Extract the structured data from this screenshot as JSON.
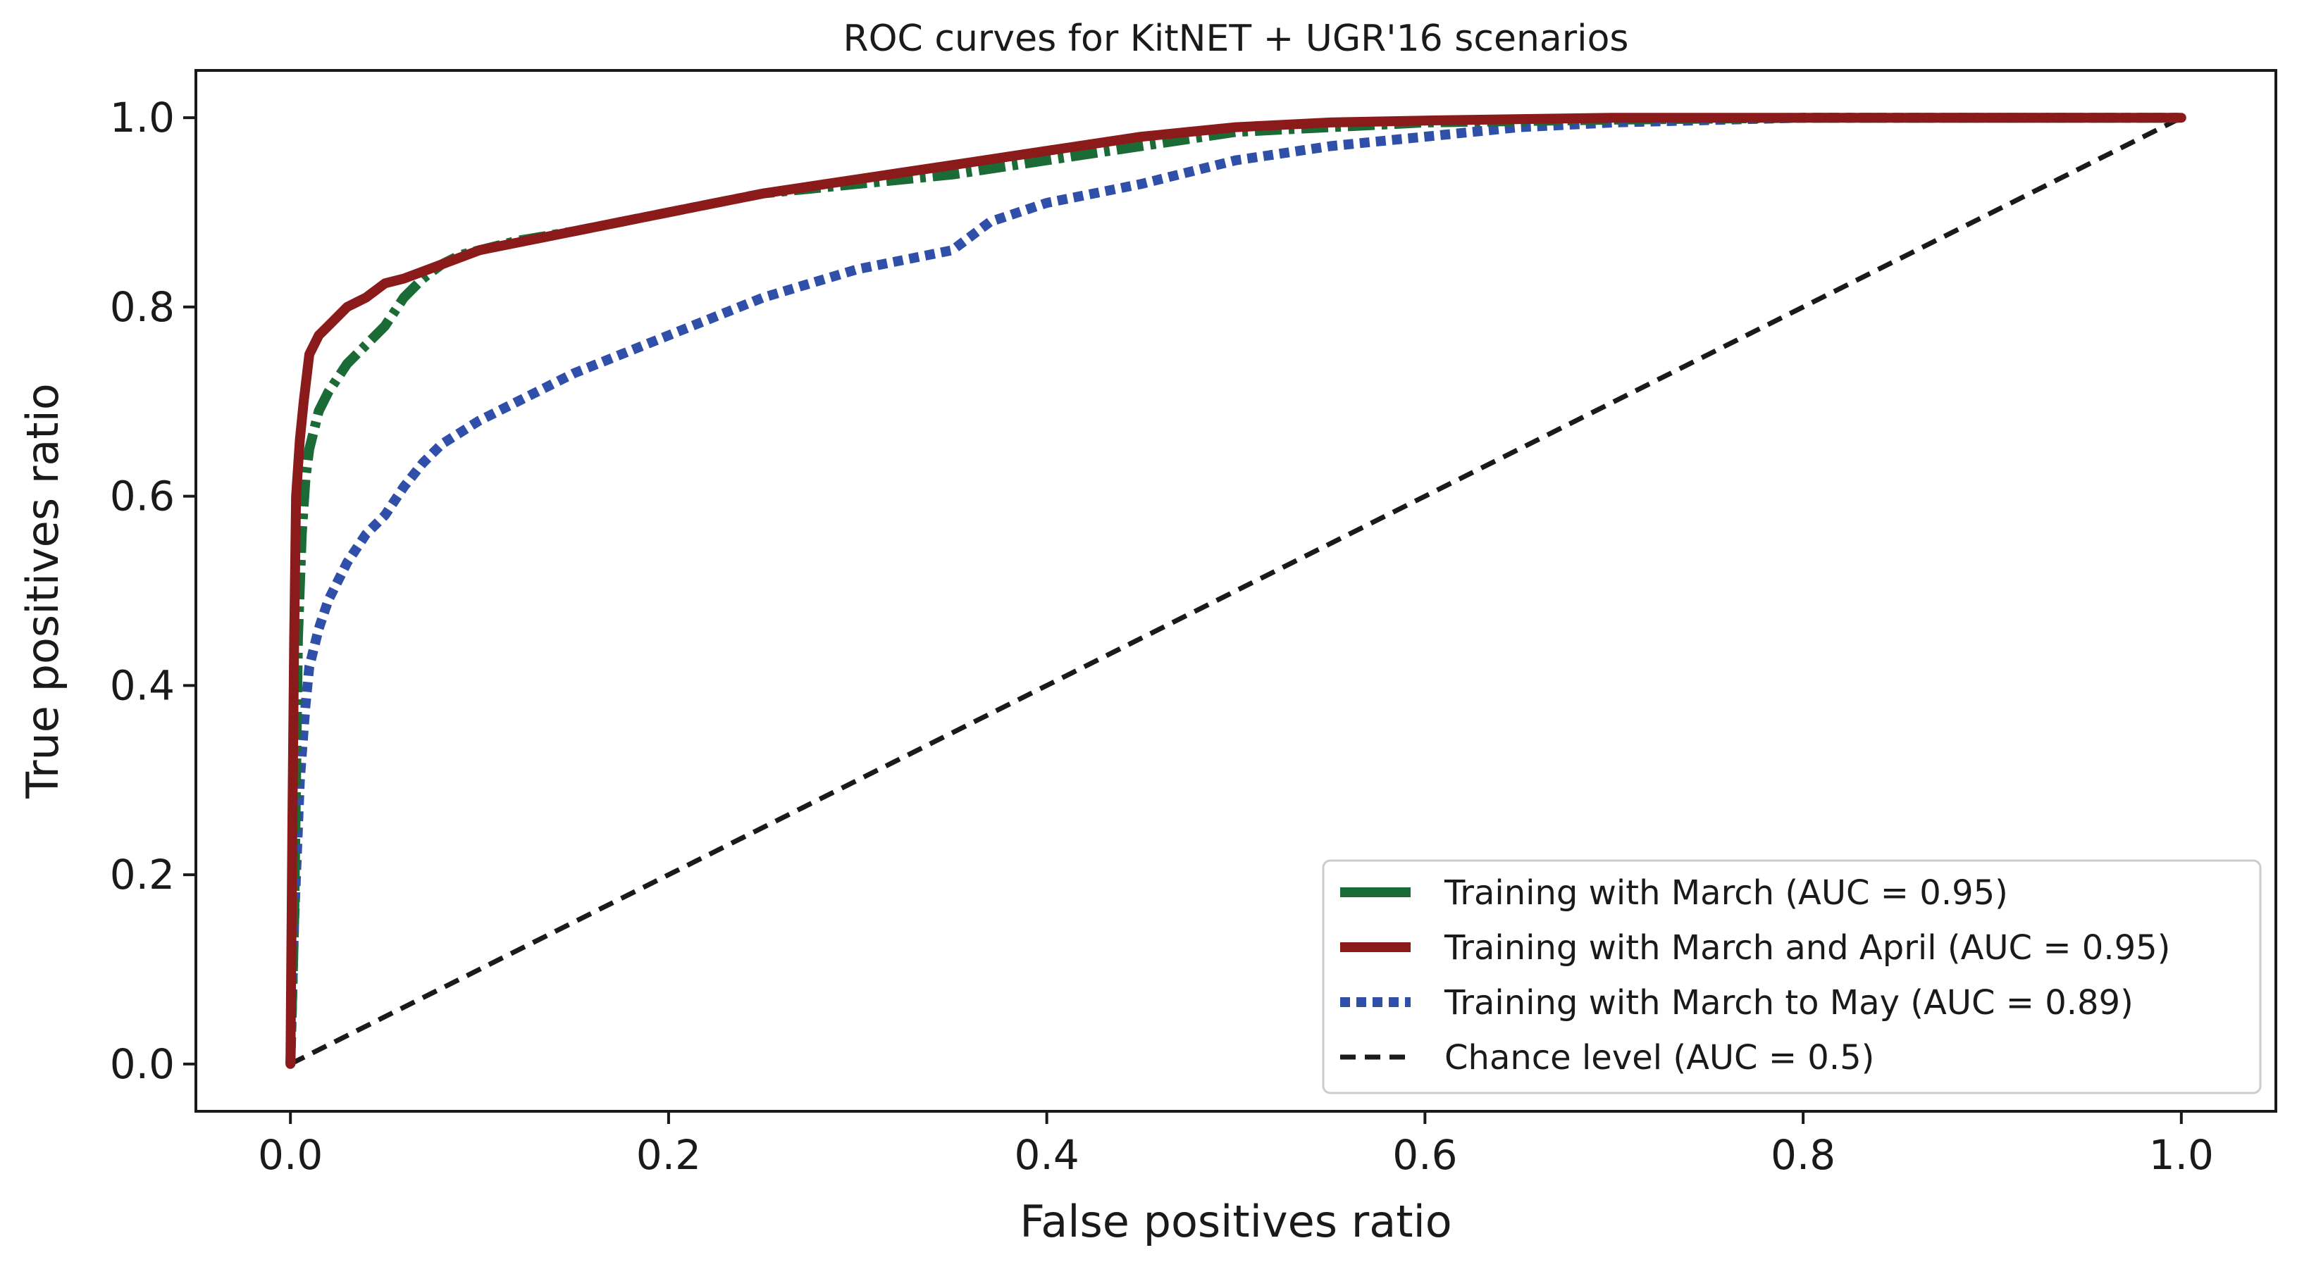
{
  "chart_data": {
    "type": "line",
    "title": "ROC curves for KitNET + UGR'16 scenarios",
    "xlabel": "False positives ratio",
    "ylabel": "True positives ratio",
    "xlim": [
      -0.05,
      1.05
    ],
    "ylim": [
      -0.05,
      1.05
    ],
    "xticks": [
      0.0,
      0.2,
      0.4,
      0.6,
      0.8,
      1.0
    ],
    "xtick_labels": [
      "0.0",
      "0.2",
      "0.4",
      "0.6",
      "0.8",
      "1.0"
    ],
    "yticks": [
      0.0,
      0.2,
      0.4,
      0.6,
      0.8,
      1.0
    ],
    "ytick_labels": [
      "0.0",
      "0.2",
      "0.4",
      "0.6",
      "0.8",
      "1.0"
    ],
    "legend_position": "bottom-right",
    "grid": false,
    "series": [
      {
        "name": "Training with March (AUC = 0.95)",
        "color": "#1a6b35",
        "style": "dashdot",
        "x": [
          0,
          0.002,
          0.004,
          0.006,
          0.008,
          0.01,
          0.015,
          0.02,
          0.03,
          0.04,
          0.05,
          0.06,
          0.07,
          0.08,
          0.09,
          0.1,
          0.12,
          0.15,
          0.2,
          0.25,
          0.3,
          0.35,
          0.4,
          0.45,
          0.5,
          0.55,
          0.6,
          0.7,
          0.8,
          0.9,
          1.0
        ],
        "y": [
          0,
          0.15,
          0.45,
          0.56,
          0.62,
          0.65,
          0.69,
          0.71,
          0.74,
          0.76,
          0.78,
          0.81,
          0.83,
          0.845,
          0.855,
          0.86,
          0.87,
          0.88,
          0.9,
          0.92,
          0.93,
          0.94,
          0.955,
          0.97,
          0.985,
          0.99,
          0.995,
          0.998,
          1.0,
          1.0,
          1.0
        ]
      },
      {
        "name": "Training with March and April (AUC = 0.95)",
        "color": "#8b1a1a",
        "style": "solid",
        "x": [
          0,
          0.001,
          0.002,
          0.003,
          0.005,
          0.007,
          0.01,
          0.015,
          0.02,
          0.03,
          0.04,
          0.05,
          0.06,
          0.08,
          0.1,
          0.15,
          0.2,
          0.25,
          0.3,
          0.35,
          0.4,
          0.45,
          0.5,
          0.55,
          0.6,
          0.7,
          0.8,
          0.9,
          1.0
        ],
        "y": [
          0,
          0.25,
          0.45,
          0.6,
          0.66,
          0.7,
          0.75,
          0.77,
          0.78,
          0.8,
          0.81,
          0.825,
          0.83,
          0.845,
          0.86,
          0.88,
          0.9,
          0.92,
          0.935,
          0.95,
          0.965,
          0.98,
          0.99,
          0.995,
          0.997,
          1.0,
          1.0,
          1.0,
          1.0
        ]
      },
      {
        "name": "Training with March to May (AUC = 0.89)",
        "color": "#2f4fa8",
        "style": "dotted",
        "x": [
          0,
          0.002,
          0.005,
          0.008,
          0.01,
          0.015,
          0.02,
          0.03,
          0.04,
          0.05,
          0.06,
          0.07,
          0.08,
          0.1,
          0.12,
          0.15,
          0.2,
          0.25,
          0.3,
          0.35,
          0.37,
          0.4,
          0.45,
          0.5,
          0.55,
          0.6,
          0.65,
          0.7,
          0.8,
          0.9,
          1.0
        ],
        "y": [
          0,
          0.15,
          0.3,
          0.38,
          0.42,
          0.46,
          0.49,
          0.53,
          0.56,
          0.58,
          0.61,
          0.635,
          0.655,
          0.68,
          0.7,
          0.73,
          0.77,
          0.81,
          0.84,
          0.86,
          0.89,
          0.91,
          0.93,
          0.955,
          0.97,
          0.98,
          0.99,
          0.995,
          1.0,
          1.0,
          1.0
        ]
      },
      {
        "name": "Chance level (AUC = 0.5)",
        "color": "#1a1a1a",
        "style": "dashed",
        "x": [
          0,
          1
        ],
        "y": [
          0,
          1
        ]
      }
    ]
  }
}
